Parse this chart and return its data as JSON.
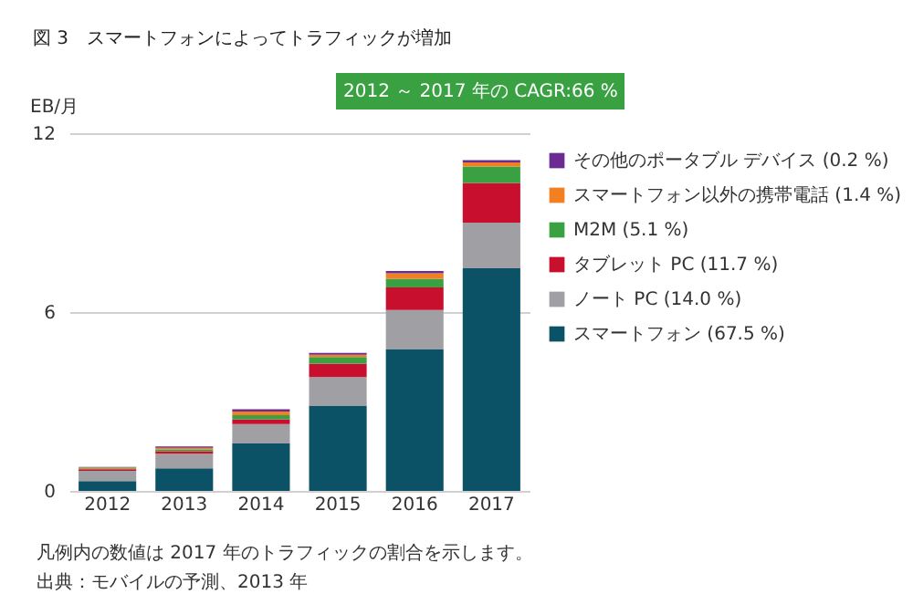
{
  "chart_data": {
    "type": "bar",
    "title": "図 3　スマートフォンによってトラフィックが増加",
    "ylabel": "EB/月",
    "stacked": true,
    "grid": "y",
    "legend": "right",
    "categories": [
      "2012",
      "2013",
      "2014",
      "2015",
      "2016",
      "2017"
    ],
    "ylim": [
      0,
      12
    ],
    "yticks": [
      0,
      6,
      12
    ],
    "series": [
      {
        "name": "スマートフォン (67.5 %)",
        "color": "#0b5266",
        "values": [
          0.33,
          0.76,
          1.59,
          2.86,
          4.76,
          7.47
        ]
      },
      {
        "name": "ノート PC (14.0 %)",
        "color": "#a0a0a4",
        "values": [
          0.34,
          0.49,
          0.65,
          0.96,
          1.31,
          1.53
        ]
      },
      {
        "name": "タブレット PC (11.7 %)",
        "color": "#c8102e",
        "values": [
          0.06,
          0.08,
          0.16,
          0.45,
          0.76,
          1.33
        ]
      },
      {
        "name": "M2M (5.1 %)",
        "color": "#3aa143",
        "values": [
          0.03,
          0.06,
          0.14,
          0.22,
          0.29,
          0.55
        ]
      },
      {
        "name": "スマートフォン以外の携帯電話 (1.4 %)",
        "color": "#f28022",
        "values": [
          0.03,
          0.06,
          0.12,
          0.08,
          0.18,
          0.14
        ]
      },
      {
        "name": "その他のポータブル デバイス (0.2 %)",
        "color": "#6a2c91",
        "values": [
          0.01,
          0.04,
          0.08,
          0.06,
          0.08,
          0.08
        ]
      }
    ],
    "annotations": [
      "2012 ～ 2017 年の CAGR:66 %",
      "凡例内の数値は 2017 年のトラフィックの割合を示します。",
      "出典：モバイルの予測、2013 年"
    ]
  }
}
